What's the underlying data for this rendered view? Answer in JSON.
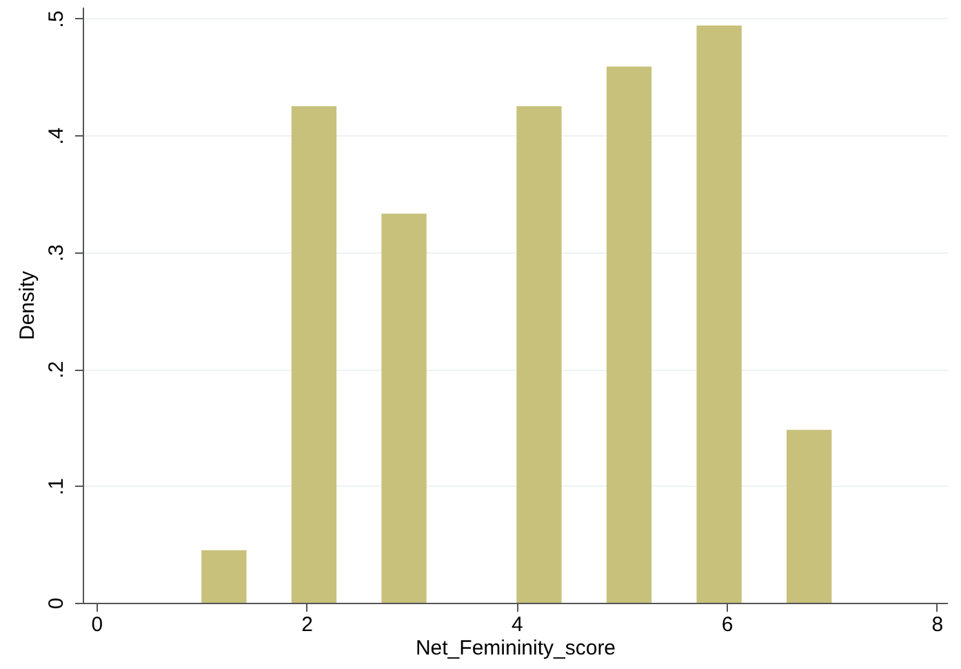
{
  "chart_data": {
    "type": "histogram",
    "xlabel": "Net_Femininity_score",
    "ylabel": "Density",
    "bins": [
      1,
      1.429,
      1.857,
      2.286,
      2.714,
      3.143,
      3.571,
      4,
      4.429,
      4.857,
      5.286,
      5.714,
      6.143,
      6.571,
      7
    ],
    "values": [
      0.045,
      0,
      0.425,
      0,
      0.333,
      0,
      0,
      0.425,
      0,
      0.459,
      0,
      0.494,
      0,
      0.148
    ],
    "color": "#c8c17c",
    "xlim": [
      -0.13,
      8.1
    ],
    "xticks": [
      0,
      2,
      4,
      6,
      8
    ],
    "ylim": [
      0,
      0.51
    ],
    "yticks": [
      0,
      {
        "value": 0.1,
        "label": ".1"
      },
      {
        "value": 0.2,
        "label": ".2"
      },
      {
        "value": 0.3,
        "label": ".3"
      },
      {
        "value": 0.4,
        "label": ".4"
      },
      {
        "value": 0.5,
        "label": ".5"
      }
    ],
    "grid": "y"
  }
}
